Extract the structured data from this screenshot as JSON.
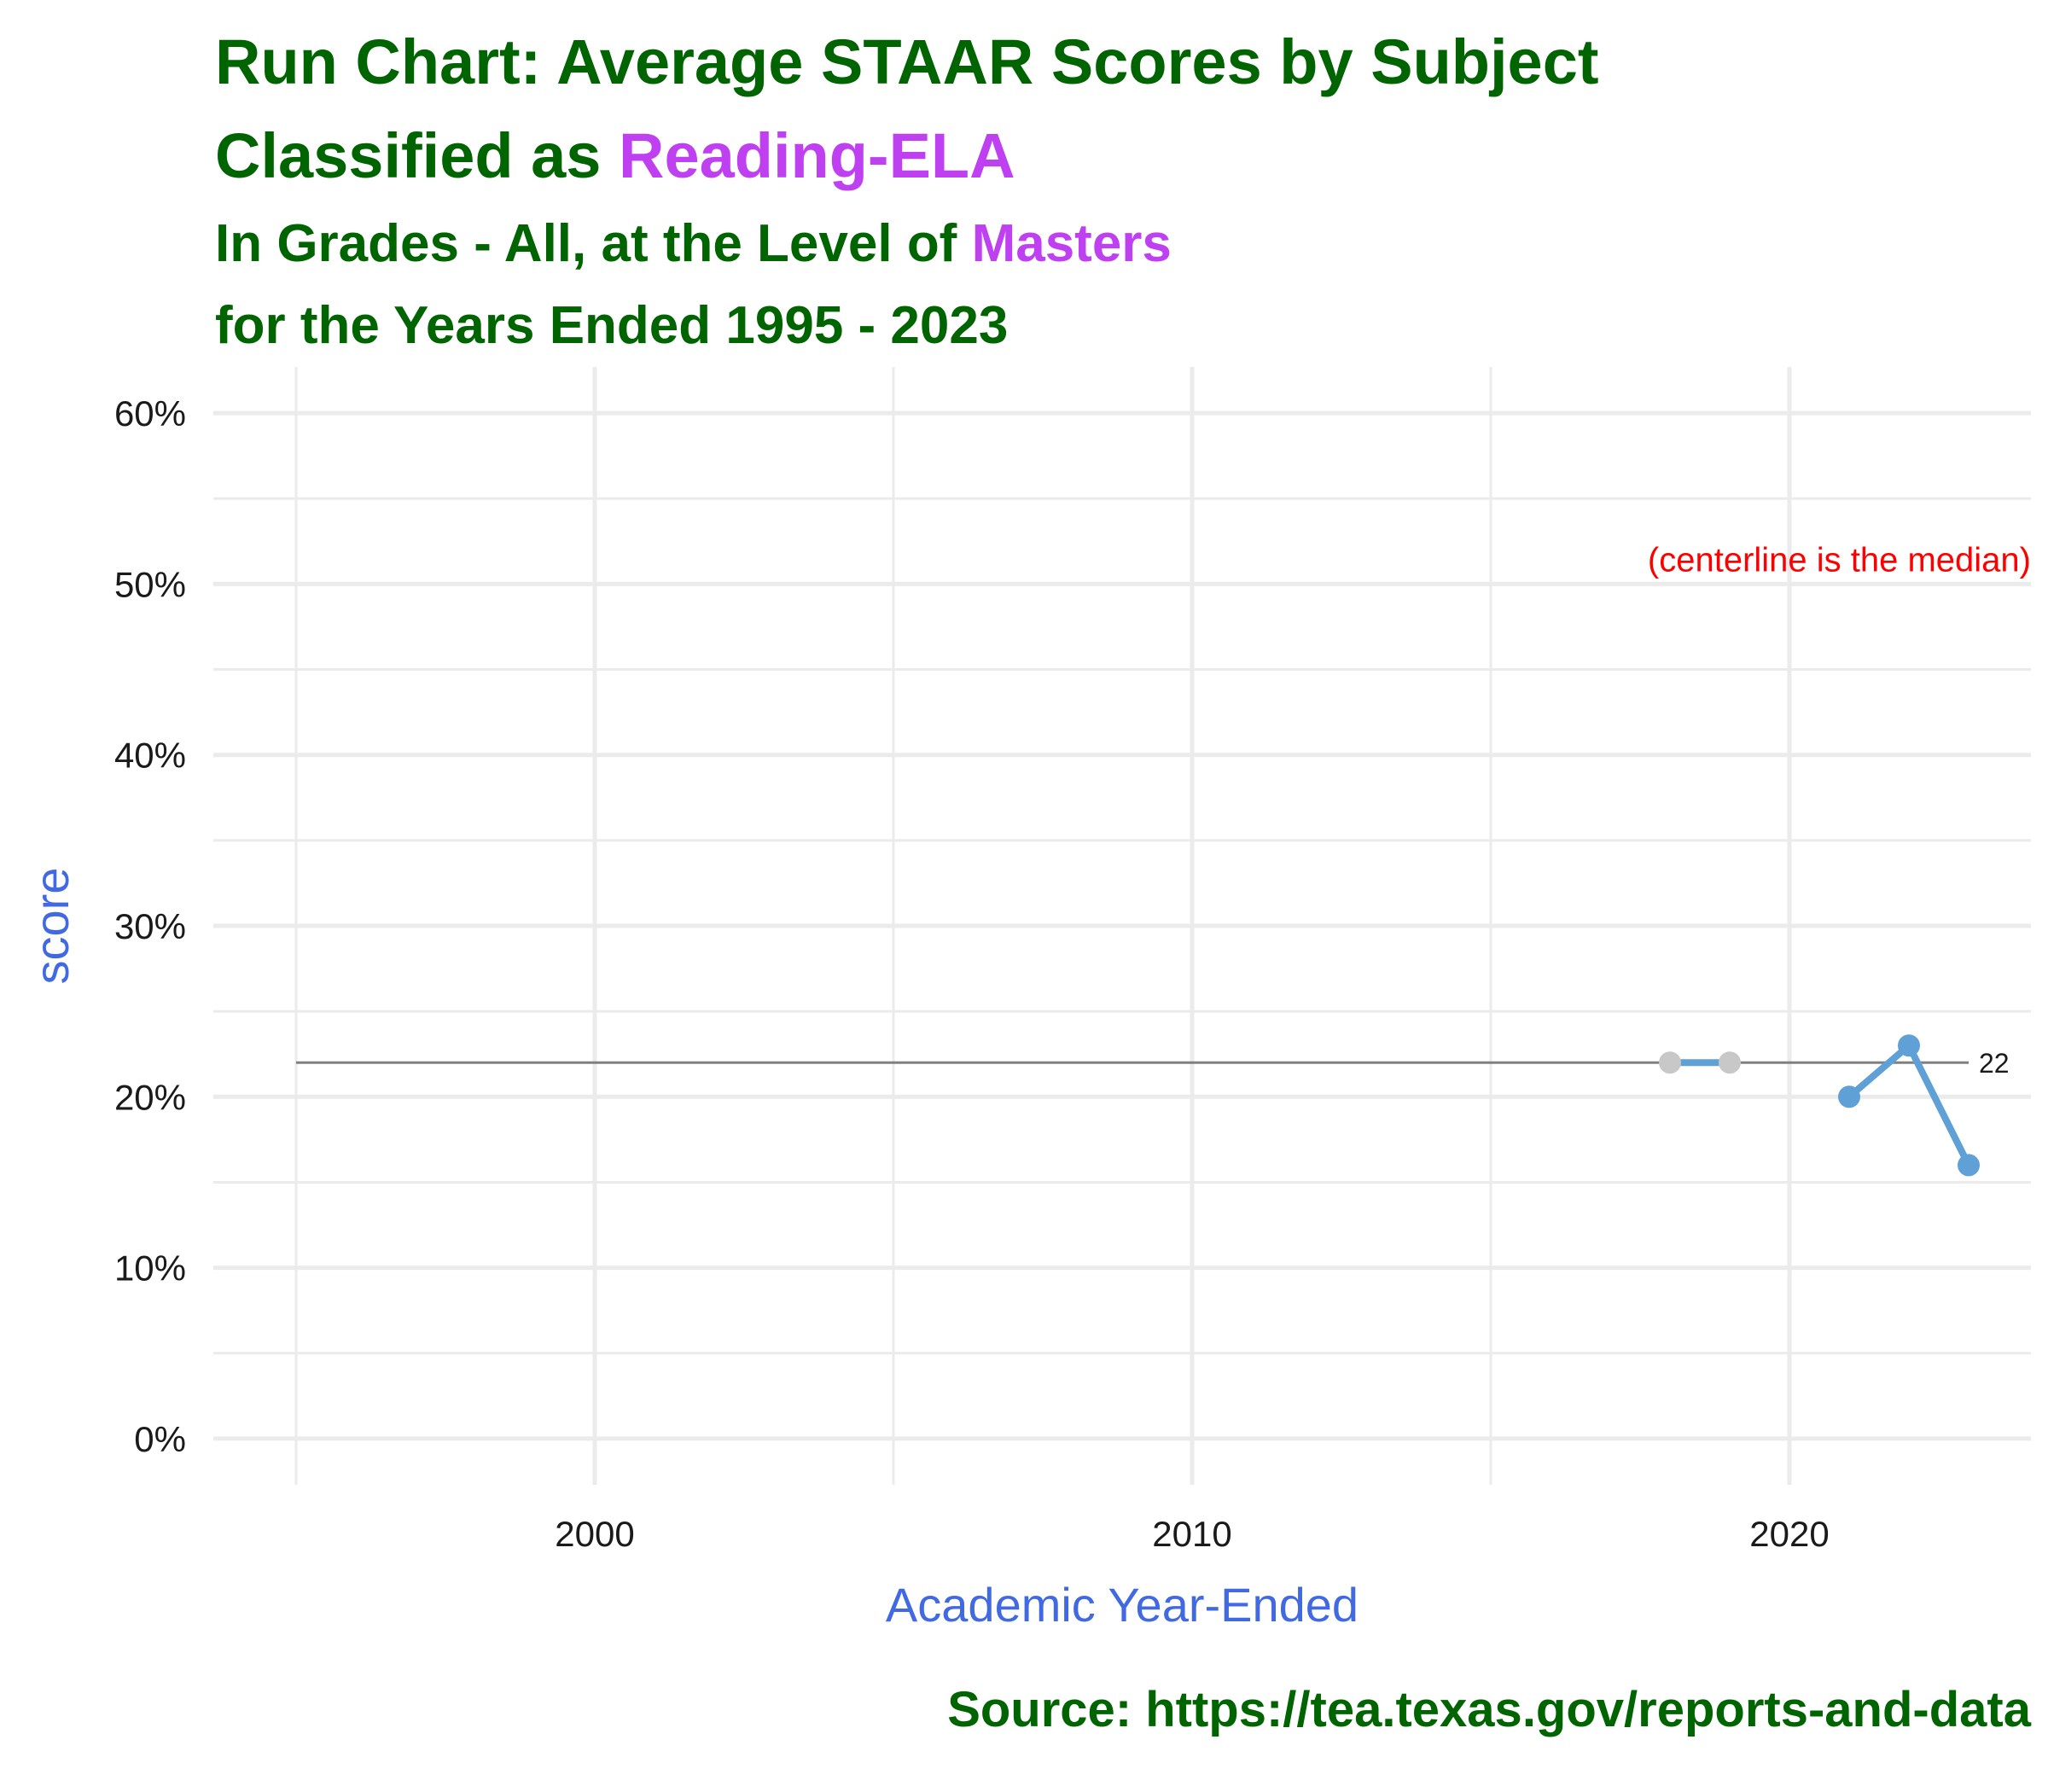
{
  "title": {
    "line1": "Run Chart: Average STAAR Scores by Subject",
    "line2_prefix": "Classified as ",
    "line2_highlight": "Reading-ELA",
    "line3_prefix": "In Grades - All, at the Level of ",
    "line3_highlight": "Masters",
    "line4": "for the Years Ended 1995 - 2023"
  },
  "source": "Source:  https://tea.texas.gov/reports-and-data",
  "colors": {
    "title": "#006400",
    "highlight": "#bf40f0",
    "axis_label": "#4169e1",
    "series_line": "#5fa0d6",
    "point_active": "#5fa0d6",
    "point_inactive": "#c8c8c8",
    "centerline": "#808080",
    "annotation": "#ff0000",
    "grid": "#ebebeb"
  },
  "chart_data": {
    "type": "line",
    "xlabel": "Academic Year-Ended",
    "ylabel": "score",
    "xlim": [
      1995,
      2025
    ],
    "ylim": [
      0,
      60
    ],
    "x_ticks": [
      2000,
      2010,
      2020
    ],
    "y_ticks": [
      0,
      10,
      20,
      30,
      40,
      50,
      60
    ],
    "y_tick_labels": [
      "0%",
      "10%",
      "20%",
      "30%",
      "40%",
      "50%",
      "60%"
    ],
    "grid": true,
    "centerline": {
      "value": 22,
      "label": "22",
      "x_range": [
        1995,
        2023
      ],
      "note": "(centerline is the median)"
    },
    "series": [
      {
        "points": [
          {
            "x": 2018,
            "y": 22,
            "status": "inactive"
          },
          {
            "x": 2019,
            "y": 22,
            "status": "inactive"
          },
          {
            "x": 2021,
            "y": 20,
            "status": "active"
          },
          {
            "x": 2022,
            "y": 23,
            "status": "active"
          },
          {
            "x": 2023,
            "y": 16,
            "status": "active"
          }
        ]
      }
    ]
  }
}
